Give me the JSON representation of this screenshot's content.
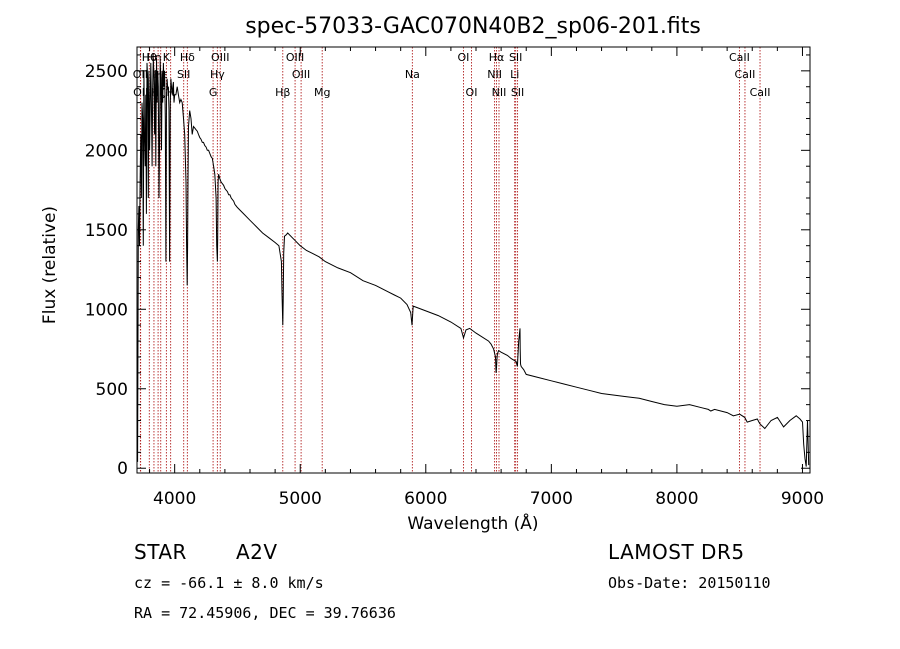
{
  "chart_data": {
    "type": "line",
    "title": "spec-57033-GAC070N40B2_sp06-201.fits",
    "xlabel": "Wavelength (Å)",
    "ylabel": "Flux (relative)",
    "xlim": [
      3700,
      9060
    ],
    "ylim": [
      -30,
      2650
    ],
    "xticks": [
      4000,
      5000,
      6000,
      7000,
      8000,
      9000
    ],
    "yticks": [
      0,
      500,
      1000,
      1500,
      2000,
      2500
    ],
    "xtick_labels": [
      "4000",
      "5000",
      "6000",
      "7000",
      "8000",
      "9000"
    ],
    "ytick_labels": [
      "0",
      "500",
      "1000",
      "1500",
      "2000",
      "2500"
    ],
    "line_color": "#000000",
    "marker_color": "#b22222",
    "spectrum": {
      "x": [
        3700,
        3705,
        3710,
        3715,
        3720,
        3725,
        3730,
        3735,
        3740,
        3745,
        3750,
        3755,
        3760,
        3765,
        3770,
        3775,
        3780,
        3785,
        3790,
        3795,
        3800,
        3805,
        3810,
        3815,
        3820,
        3825,
        3830,
        3835,
        3840,
        3845,
        3850,
        3855,
        3860,
        3865,
        3870,
        3875,
        3880,
        3885,
        3890,
        3895,
        3900,
        3905,
        3910,
        3915,
        3920,
        3925,
        3930,
        3935,
        3940,
        3945,
        3950,
        3955,
        3960,
        3965,
        3970,
        3975,
        3980,
        3985,
        3990,
        3995,
        4000,
        4010,
        4020,
        4030,
        4040,
        4050,
        4060,
        4070,
        4080,
        4090,
        4095,
        4100,
        4103,
        4106,
        4110,
        4120,
        4130,
        4140,
        4150,
        4160,
        4170,
        4180,
        4190,
        4200,
        4210,
        4220,
        4230,
        4240,
        4250,
        4260,
        4270,
        4280,
        4290,
        4300,
        4310,
        4320,
        4330,
        4335,
        4340,
        4343,
        4346,
        4350,
        4360,
        4370,
        4380,
        4390,
        4400,
        4410,
        4420,
        4430,
        4440,
        4450,
        4460,
        4470,
        4480,
        4490,
        4500,
        4550,
        4600,
        4650,
        4700,
        4750,
        4800,
        4830,
        4850,
        4855,
        4858,
        4861,
        4864,
        4868,
        4875,
        4890,
        4900,
        4950,
        5000,
        5050,
        5100,
        5150,
        5200,
        5300,
        5400,
        5500,
        5600,
        5700,
        5750,
        5800,
        5850,
        5880,
        5890,
        5895,
        5900,
        6000,
        6100,
        6200,
        6280,
        6300,
        6320,
        6350,
        6400,
        6500,
        6520,
        6540,
        6555,
        6560,
        6563,
        6566,
        6570,
        6580,
        6600,
        6650,
        6680,
        6700,
        6720,
        6730,
        6740,
        6750,
        6752,
        6754,
        6756,
        6760,
        6780,
        6800,
        6900,
        7000,
        7100,
        7200,
        7300,
        7400,
        7500,
        7600,
        7700,
        7800,
        7900,
        8000,
        8100,
        8200,
        8250,
        8270,
        8300,
        8400,
        8450,
        8500,
        8540,
        8560,
        8600,
        8640,
        8660,
        8700,
        8750,
        8800,
        8850,
        8900,
        8950,
        8980,
        9000,
        9010,
        9020,
        9030,
        9040,
        9050
      ],
      "y": [
        650,
        40,
        1500,
        1650,
        1400,
        1800,
        2100,
        1700,
        2300,
        2200,
        1400,
        2500,
        2100,
        1900,
        2350,
        1600,
        2550,
        2450,
        1700,
        2500,
        2000,
        2300,
        2550,
        2300,
        1900,
        2400,
        2580,
        2450,
        2100,
        2500,
        1900,
        2580,
        2300,
        2500,
        2400,
        1700,
        2050,
        2550,
        2450,
        2000,
        2500,
        2300,
        2550,
        2400,
        2500,
        2200,
        1300,
        2350,
        2450,
        2380,
        2400,
        2250,
        1300,
        2300,
        2450,
        2400,
        2350,
        2400,
        2430,
        2300,
        2350,
        2350,
        2400,
        2350,
        2300,
        2320,
        2300,
        2200,
        2100,
        1800,
        1400,
        1150,
        1400,
        1800,
        2150,
        2250,
        2200,
        2100,
        2150,
        2140,
        2130,
        2120,
        2100,
        2080,
        2070,
        2050,
        2050,
        2030,
        2020,
        2000,
        2000,
        1980,
        1960,
        1950,
        1900,
        1850,
        1700,
        1400,
        1300,
        1450,
        1800,
        1850,
        1820,
        1800,
        1790,
        1780,
        1760,
        1750,
        1740,
        1720,
        1720,
        1700,
        1690,
        1680,
        1660,
        1650,
        1640,
        1600,
        1560,
        1520,
        1480,
        1450,
        1420,
        1400,
        1300,
        1100,
        1000,
        900,
        1050,
        1350,
        1460,
        1470,
        1480,
        1440,
        1400,
        1370,
        1350,
        1330,
        1300,
        1260,
        1230,
        1180,
        1150,
        1110,
        1090,
        1070,
        1030,
        980,
        900,
        960,
        1020,
        990,
        960,
        920,
        880,
        820,
        870,
        880,
        850,
        800,
        780,
        750,
        700,
        600,
        630,
        680,
        720,
        740,
        730,
        710,
        690,
        680,
        670,
        640,
        800,
        880,
        750,
        660,
        650,
        640,
        620,
        590,
        570,
        550,
        530,
        510,
        490,
        470,
        460,
        450,
        440,
        420,
        400,
        390,
        400,
        380,
        370,
        360,
        370,
        350,
        330,
        340,
        320,
        290,
        300,
        310,
        280,
        250,
        300,
        320,
        260,
        300,
        330,
        310,
        290,
        150,
        60,
        10,
        300,
        20
      ]
    },
    "lines": [
      {
        "label": "Hθ",
        "x": 3798,
        "row": 0
      },
      {
        "label": "Hη",
        "x": 3835,
        "row": 0
      },
      {
        "label": "K",
        "x": 3934,
        "row": 0
      },
      {
        "label": "Hδ",
        "x": 4101,
        "row": 0
      },
      {
        "label": "OIII",
        "x": 4363,
        "row": 0
      },
      {
        "label": "OIII",
        "x": 4959,
        "row": 0
      },
      {
        "label": "OI",
        "x": 6300,
        "row": 0
      },
      {
        "label": "Hα",
        "x": 6563,
        "row": 0
      },
      {
        "label": "SII",
        "x": 6716,
        "row": 0
      },
      {
        "label": "CaII",
        "x": 8498,
        "row": 0
      },
      {
        "label": "OII",
        "x": 3727,
        "row": 1
      },
      {
        "label": "Hε",
        "x": 3889,
        "row": 1
      },
      {
        "label": "SII",
        "x": 4072,
        "row": 1
      },
      {
        "label": "Hγ",
        "x": 4340,
        "row": 1
      },
      {
        "label": "OIII",
        "x": 5007,
        "row": 1
      },
      {
        "label": "Na",
        "x": 5893,
        "row": 1
      },
      {
        "label": "NII",
        "x": 6548,
        "row": 1
      },
      {
        "label": "Li",
        "x": 6708,
        "row": 1
      },
      {
        "label": "CaII",
        "x": 8542,
        "row": 1
      },
      {
        "label": "OII",
        "x": 3729,
        "row": 2
      },
      {
        "label": "Hζ",
        "x": 3868,
        "row": 2
      },
      {
        "label": "H",
        "x": 3968,
        "row": 2
      },
      {
        "label": "G",
        "x": 4306,
        "row": 2
      },
      {
        "label": "Hβ",
        "x": 4861,
        "row": 2
      },
      {
        "label": "Mg",
        "x": 5175,
        "row": 2
      },
      {
        "label": "OI",
        "x": 6364,
        "row": 2
      },
      {
        "label": "NII",
        "x": 6583,
        "row": 2
      },
      {
        "label": "SII",
        "x": 6731,
        "row": 2
      },
      {
        "label": "CaII",
        "x": 8662,
        "row": 2
      }
    ]
  },
  "info": {
    "class": "STAR",
    "subclass": "A2V",
    "survey": "LAMOST  DR5",
    "cz": "cz = -66.1 ± 8.0 km/s",
    "obs_date": "Obs-Date: 20150110",
    "coords": "RA =  72.45906, DEC =  39.76636"
  }
}
